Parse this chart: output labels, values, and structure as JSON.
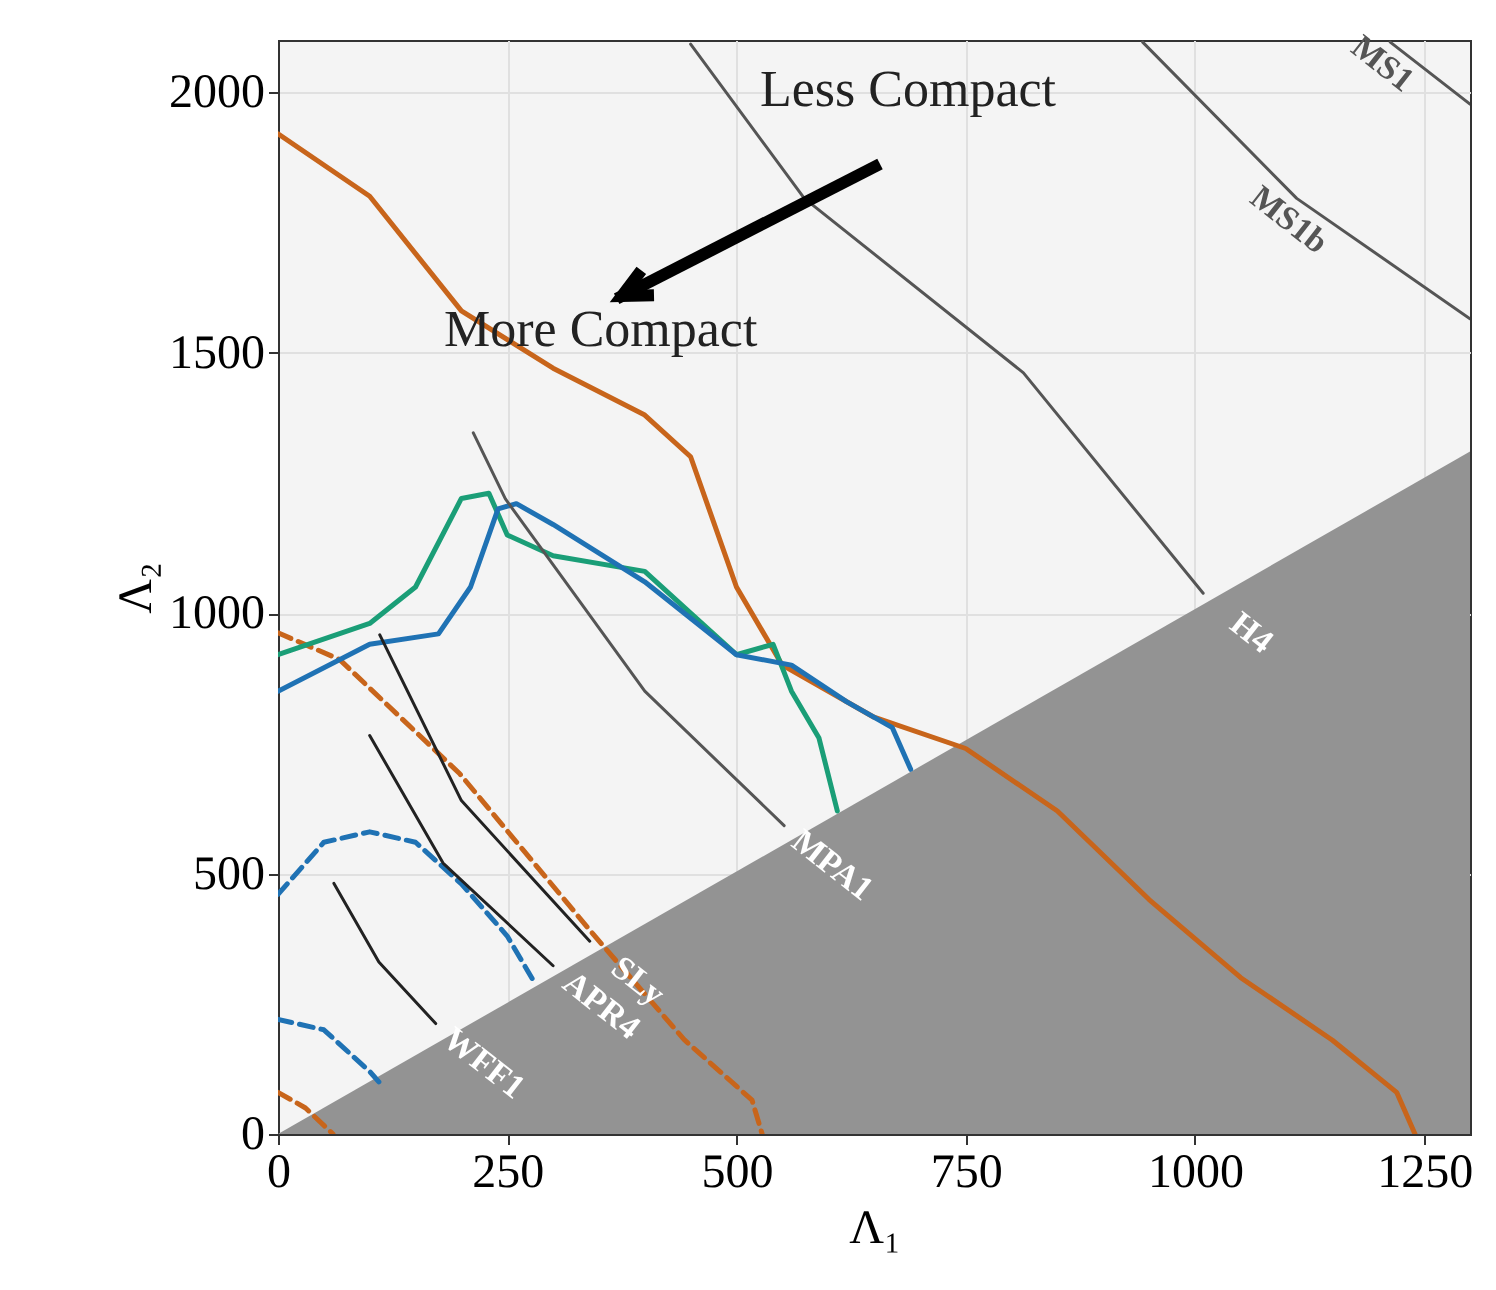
{
  "chart_data": {
    "type": "line",
    "xlabel": "Λ₁",
    "ylabel": "Λ₂",
    "xlim": [
      0,
      1300
    ],
    "ylim": [
      0,
      2100
    ],
    "xticks": [
      0,
      250,
      500,
      750,
      1000,
      1250
    ],
    "yticks": [
      0,
      500,
      1000,
      1500,
      2000
    ],
    "grid": true,
    "series": [
      {
        "type": "area",
        "color": "#939393",
        "x": [
          0,
          1300
        ],
        "values": [
          0,
          1310
        ]
      },
      {
        "color": "#c8651b",
        "x": [
          0,
          100,
          200,
          300,
          400,
          450,
          500,
          550,
          650,
          750,
          850,
          950,
          1050,
          1150,
          1220,
          1240
        ],
        "values": [
          1920,
          1800,
          1580,
          1470,
          1380,
          1300,
          1050,
          900,
          800,
          740,
          620,
          450,
          300,
          180,
          80,
          0
        ]
      },
      {
        "color": "#c8651b",
        "line_style": "dashed",
        "x": [
          0,
          67,
          198,
          343,
          443,
          517,
          528
        ],
        "values": [
          962,
          911,
          692,
          385,
          181,
          65,
          0
        ]
      },
      {
        "color": "#c8651b",
        "line_style": "dashed",
        "x": [
          0,
          30,
          60
        ],
        "values": [
          80,
          50,
          0
        ]
      },
      {
        "color": "#1a9e77",
        "x": [
          0,
          100,
          150,
          200,
          230,
          250,
          300,
          400,
          450,
          500,
          540,
          560,
          590,
          610
        ],
        "values": [
          920,
          980,
          1050,
          1220,
          1230,
          1150,
          1110,
          1080,
          1000,
          920,
          940,
          850,
          760,
          620
        ]
      },
      {
        "color": "#1f72b4",
        "x": [
          0,
          100,
          175,
          210,
          240,
          260,
          300,
          400,
          500,
          560,
          620,
          670,
          690
        ],
        "values": [
          850,
          940,
          960,
          1050,
          1200,
          1210,
          1170,
          1060,
          920,
          900,
          830,
          780,
          700
        ]
      },
      {
        "color": "#1f72b4",
        "line_style": "dashed",
        "x": [
          0,
          50,
          100,
          150,
          200,
          250,
          280
        ],
        "values": [
          460,
          560,
          580,
          560,
          480,
          380,
          290
        ]
      },
      {
        "color": "#1f72b4",
        "line_style": "dashed",
        "x": [
          0,
          50,
          100,
          110
        ],
        "values": [
          220,
          200,
          120,
          100
        ]
      },
      {
        "name": "WFF1",
        "color": "#222222",
        "x": [
          61,
          110,
          172
        ],
        "values": [
          481,
          330,
          212
        ]
      },
      {
        "name": "APR4",
        "color": "#222222",
        "x": [
          100,
          180,
          300
        ],
        "values": [
          765,
          520,
          323
        ]
      },
      {
        "name": "SLy",
        "color": "#222222",
        "x": [
          111,
          200,
          340
        ],
        "values": [
          958,
          640,
          370
        ]
      },
      {
        "name": "MPA1",
        "color": "#555555",
        "x": [
          213,
          248,
          400,
          552
        ],
        "values": [
          1346,
          1219,
          850,
          592
        ]
      },
      {
        "name": "H4",
        "color": "#555555",
        "x": [
          450,
          574,
          813,
          1009
        ],
        "values": [
          2092,
          1796,
          1461,
          1038
        ]
      },
      {
        "name": "MS1b",
        "color": "#555555",
        "x": [
          943,
          1111,
          1300
        ],
        "values": [
          2096,
          1796,
          1565
        ]
      },
      {
        "name": "MS1",
        "color": "#555555",
        "x": [
          1213,
          1300
        ],
        "values": [
          2096,
          1977
        ]
      }
    ],
    "annotations": [
      "Less Compact",
      "More Compact"
    ]
  }
}
